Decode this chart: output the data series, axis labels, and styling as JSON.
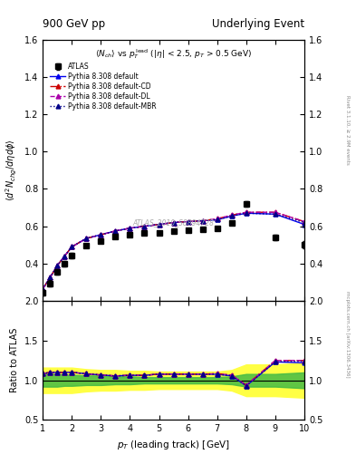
{
  "title_left": "900 GeV pp",
  "title_right": "Underlying Event",
  "right_label_top": "Rivet 3.1.10, ≥ 2.9M events",
  "right_label_bot": "mcplots.cern.ch [arXiv:1306.3436]",
  "watermark": "ATLAS_2010_S8894728",
  "xlabel": "p_{T} (leading track) [GeV]",
  "ylabel_ratio": "Ratio to ATLAS",
  "xlim": [
    1.0,
    10.0
  ],
  "ylim_main": [
    0.2,
    1.6
  ],
  "ylim_ratio": [
    0.5,
    2.0
  ],
  "yticks_main": [
    0.4,
    0.6,
    0.8,
    1.0,
    1.2,
    1.4,
    1.6
  ],
  "yticks_ratio": [
    0.5,
    1.0,
    1.5,
    2.0
  ],
  "xticks": [
    1,
    2,
    3,
    4,
    5,
    6,
    7,
    8,
    9,
    10
  ],
  "atlas_x": [
    1.0,
    1.25,
    1.5,
    1.75,
    2.0,
    2.5,
    3.0,
    3.5,
    4.0,
    4.5,
    5.0,
    5.5,
    6.0,
    6.5,
    7.0,
    7.5,
    8.0,
    9.0,
    10.0
  ],
  "atlas_y": [
    0.245,
    0.295,
    0.355,
    0.4,
    0.445,
    0.495,
    0.52,
    0.545,
    0.555,
    0.565,
    0.565,
    0.575,
    0.58,
    0.585,
    0.59,
    0.62,
    0.72,
    0.54,
    0.5
  ],
  "atlas_yerr": [
    0.015,
    0.015,
    0.015,
    0.015,
    0.015,
    0.01,
    0.01,
    0.01,
    0.01,
    0.01,
    0.01,
    0.01,
    0.01,
    0.01,
    0.01,
    0.01,
    0.015,
    0.015,
    0.02
  ],
  "atlas_band_lo": [
    0.84,
    0.84,
    0.84,
    0.84,
    0.84,
    0.86,
    0.87,
    0.87,
    0.88,
    0.88,
    0.89,
    0.89,
    0.89,
    0.89,
    0.89,
    0.87,
    0.8,
    0.8,
    0.78
  ],
  "atlas_band_hi": [
    1.16,
    1.16,
    1.16,
    1.16,
    1.16,
    1.14,
    1.13,
    1.13,
    1.12,
    1.12,
    1.11,
    1.11,
    1.11,
    1.11,
    1.11,
    1.13,
    1.2,
    1.2,
    1.22
  ],
  "atlas_band_lo2": [
    0.92,
    0.92,
    0.92,
    0.93,
    0.93,
    0.94,
    0.94,
    0.95,
    0.95,
    0.96,
    0.96,
    0.96,
    0.96,
    0.96,
    0.96,
    0.95,
    0.92,
    0.92,
    0.9
  ],
  "atlas_band_hi2": [
    1.08,
    1.08,
    1.08,
    1.07,
    1.07,
    1.06,
    1.06,
    1.05,
    1.05,
    1.04,
    1.04,
    1.04,
    1.04,
    1.04,
    1.04,
    1.05,
    1.08,
    1.08,
    1.1
  ],
  "pythia_x": [
    1.0,
    1.25,
    1.5,
    1.75,
    2.0,
    2.5,
    3.0,
    3.5,
    4.0,
    4.5,
    5.0,
    5.5,
    6.0,
    6.5,
    7.0,
    7.5,
    8.0,
    9.0,
    10.0
  ],
  "py_def_y": [
    0.265,
    0.325,
    0.39,
    0.44,
    0.49,
    0.535,
    0.555,
    0.575,
    0.59,
    0.6,
    0.61,
    0.62,
    0.625,
    0.63,
    0.635,
    0.655,
    0.67,
    0.665,
    0.61
  ],
  "py_cd_y": [
    0.265,
    0.325,
    0.39,
    0.44,
    0.49,
    0.535,
    0.555,
    0.575,
    0.59,
    0.6,
    0.61,
    0.62,
    0.625,
    0.63,
    0.64,
    0.66,
    0.675,
    0.675,
    0.625
  ],
  "py_dl_y": [
    0.265,
    0.325,
    0.39,
    0.44,
    0.49,
    0.535,
    0.555,
    0.575,
    0.59,
    0.6,
    0.61,
    0.62,
    0.625,
    0.63,
    0.64,
    0.66,
    0.675,
    0.675,
    0.625
  ],
  "py_mbr_y": [
    0.265,
    0.325,
    0.39,
    0.44,
    0.49,
    0.535,
    0.555,
    0.575,
    0.59,
    0.6,
    0.61,
    0.62,
    0.625,
    0.63,
    0.635,
    0.655,
    0.67,
    0.665,
    0.62
  ],
  "ratio_def_y": [
    1.082,
    1.101,
    1.099,
    1.1,
    1.101,
    1.082,
    1.067,
    1.055,
    1.063,
    1.062,
    1.079,
    1.078,
    1.078,
    1.077,
    1.076,
    1.056,
    0.931,
    1.232,
    1.22
  ],
  "ratio_cd_y": [
    1.082,
    1.101,
    1.099,
    1.1,
    1.101,
    1.082,
    1.067,
    1.055,
    1.063,
    1.062,
    1.079,
    1.078,
    1.079,
    1.077,
    1.085,
    1.065,
    0.938,
    1.25,
    1.25
  ],
  "ratio_dl_y": [
    1.082,
    1.101,
    1.099,
    1.1,
    1.101,
    1.082,
    1.067,
    1.055,
    1.063,
    1.062,
    1.079,
    1.078,
    1.079,
    1.077,
    1.085,
    1.065,
    0.938,
    1.25,
    1.25
  ],
  "ratio_mbr_y": [
    1.082,
    1.101,
    1.099,
    1.1,
    1.101,
    1.082,
    1.067,
    1.055,
    1.063,
    1.062,
    1.079,
    1.078,
    1.078,
    1.077,
    1.076,
    1.056,
    0.931,
    1.232,
    1.24
  ],
  "color_default": "#0000ee",
  "color_cd": "#cc0000",
  "color_dl": "#aa00aa",
  "color_mbr": "#000088",
  "legend_entries": [
    "ATLAS",
    "Pythia 8.308 default",
    "Pythia 8.308 default-CD",
    "Pythia 8.308 default-DL",
    "Pythia 8.308 default-MBR"
  ],
  "band_yellow": "#ffff44",
  "band_green": "#44bb44",
  "background": "#ffffff"
}
